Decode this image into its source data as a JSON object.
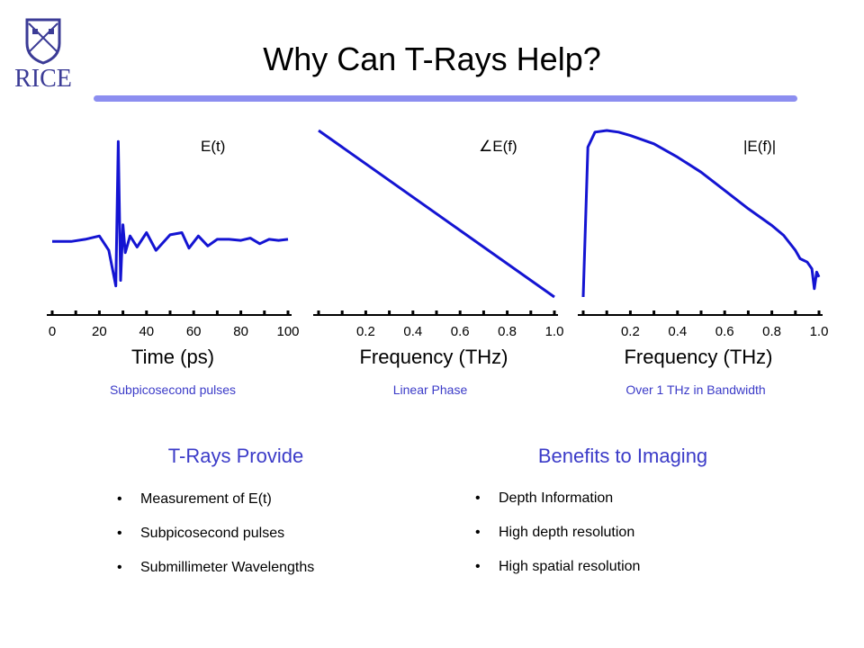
{
  "logo": {
    "text": "RICE",
    "accent": "#3b3b96"
  },
  "title": "Why Can T-Rays Help?",
  "charts": [
    {
      "label": "E(t)",
      "xlabel": "Time (ps)",
      "caption": "Subpicosecond pulses",
      "ticks": [
        "0",
        "20",
        "40",
        "60",
        "80",
        "100"
      ]
    },
    {
      "label": "∠E(f)",
      "xlabel": "Frequency (THz)",
      "caption": "Linear Phase",
      "ticks": [
        "0.2",
        "0.4",
        "0.6",
        "0.8",
        "1.0"
      ]
    },
    {
      "label": "|E(f)|",
      "xlabel": "Frequency (THz)",
      "caption": "Over 1 THz in Bandwidth",
      "ticks": [
        "0.2",
        "0.4",
        "0.6",
        "0.8",
        "1.0"
      ]
    }
  ],
  "chart_data": [
    {
      "type": "line",
      "title": "E(t)",
      "xlabel": "Time (ps)",
      "xlim": [
        0,
        100
      ],
      "series": [
        {
          "color": "#1414d2",
          "x": [
            0,
            8,
            14,
            20,
            24,
            27,
            28,
            29,
            30,
            31,
            33,
            36,
            40,
            44,
            50,
            55,
            58,
            62,
            66,
            70,
            75,
            80,
            84,
            88,
            92,
            96,
            100
          ],
          "y": [
            0,
            0,
            0.02,
            0.05,
            -0.08,
            -0.4,
            0.9,
            -0.35,
            0.15,
            -0.1,
            0.05,
            -0.05,
            0.08,
            -0.08,
            0.06,
            0.08,
            -0.06,
            0.05,
            -0.04,
            0.02,
            0.02,
            0.01,
            0.03,
            -0.02,
            0.02,
            0.01,
            0.02
          ]
        }
      ]
    },
    {
      "type": "line",
      "title": "∠E(f)",
      "xlabel": "Frequency (THz)",
      "xlim": [
        0,
        1.0
      ],
      "series": [
        {
          "color": "#1414d2",
          "x": [
            0,
            1.0
          ],
          "y": [
            1,
            0
          ]
        }
      ]
    },
    {
      "type": "line",
      "title": "|E(f)|",
      "xlabel": "Frequency (THz)",
      "xlim": [
        0,
        1.0
      ],
      "series": [
        {
          "color": "#1414d2",
          "x": [
            0.0,
            0.02,
            0.05,
            0.1,
            0.15,
            0.2,
            0.3,
            0.4,
            0.5,
            0.6,
            0.7,
            0.8,
            0.85,
            0.9,
            0.92,
            0.95,
            0.97,
            0.98,
            0.99,
            1.0
          ],
          "y": [
            0.0,
            0.9,
            0.99,
            1.0,
            0.99,
            0.97,
            0.92,
            0.84,
            0.75,
            0.64,
            0.53,
            0.43,
            0.37,
            0.28,
            0.23,
            0.21,
            0.17,
            0.05,
            0.15,
            0.12
          ]
        }
      ]
    }
  ],
  "left_section": {
    "heading": "T-Rays Provide",
    "items": [
      "Measurement of E(t)",
      "Subpicosecond pulses",
      "Submillimeter Wavelengths"
    ]
  },
  "right_section": {
    "heading": "Benefits to Imaging",
    "items": [
      "Depth Information",
      "High depth resolution",
      "High spatial resolution"
    ]
  }
}
